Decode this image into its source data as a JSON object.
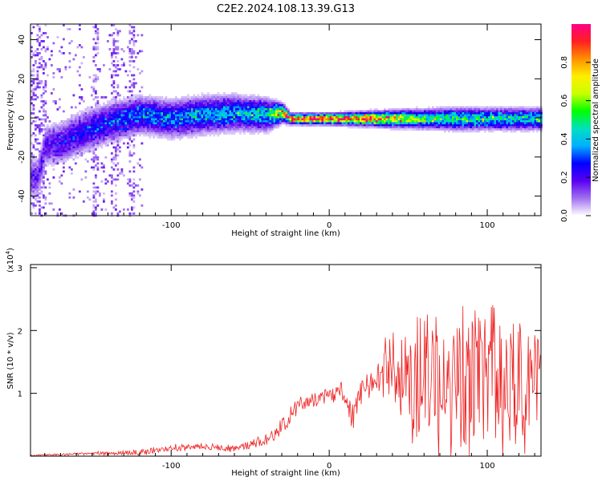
{
  "title": "C2E2.2024.108.13.39.G13",
  "colors": {
    "background": "#ffffff",
    "axis": "#000000",
    "snr_line": "#ee2222"
  },
  "chart_data": [
    {
      "type": "heatmap",
      "title": "C2E2.2024.108.13.39.G13",
      "xlabel": "Height of straight line (km)",
      "ylabel": "Frequency (Hz)",
      "xlim": [
        -189,
        134
      ],
      "ylim": [
        -50,
        48
      ],
      "xticks": [
        -100,
        0,
        100
      ],
      "xtick_labels": [
        "-100",
        "0",
        "100"
      ],
      "yticks": [
        -40,
        -20,
        0,
        20,
        40
      ],
      "ytick_labels": [
        "-40",
        "-20",
        "0",
        "20",
        "40"
      ],
      "colorbar": {
        "label": "Normalized spectral amplitude",
        "range": [
          0,
          1
        ],
        "ticks": [
          0.0,
          0.2,
          0.4,
          0.6,
          0.8
        ],
        "tick_labels": [
          "0.0",
          "0.2",
          "0.4",
          "0.6",
          "0.8"
        ],
        "colormap": [
          "#ffffff",
          "#a070f0",
          "#5a00f0",
          "#0000ff",
          "#00b0ff",
          "#00e0c0",
          "#00ff00",
          "#c8ff00",
          "#ffee00",
          "#ff9000",
          "#ff2020",
          "#ff0088"
        ]
      },
      "band_center_hz": [
        {
          "x": -185,
          "f": -30
        },
        {
          "x": -180,
          "f": -14
        },
        {
          "x": -170,
          "f": -12
        },
        {
          "x": -160,
          "f": -8
        },
        {
          "x": -150,
          "f": -5
        },
        {
          "x": -140,
          "f": -2
        },
        {
          "x": -130,
          "f": 0
        },
        {
          "x": -120,
          "f": 2
        },
        {
          "x": -100,
          "f": 0
        },
        {
          "x": -80,
          "f": 2
        },
        {
          "x": -60,
          "f": 3
        },
        {
          "x": -40,
          "f": 2
        },
        {
          "x": -30,
          "f": 3
        },
        {
          "x": -25,
          "f": 0
        },
        {
          "x": 0,
          "f": 0
        },
        {
          "x": 60,
          "f": 0
        },
        {
          "x": 100,
          "f": 0
        },
        {
          "x": 134,
          "f": 0
        }
      ],
      "band_halfwidth_hz": [
        {
          "x": -185,
          "w": 8
        },
        {
          "x": -160,
          "w": 8
        },
        {
          "x": -120,
          "w": 7
        },
        {
          "x": -80,
          "w": 7
        },
        {
          "x": -40,
          "w": 6
        },
        {
          "x": -25,
          "w": 2
        },
        {
          "x": 0,
          "w": 2
        },
        {
          "x": 40,
          "w": 3
        },
        {
          "x": 80,
          "w": 4
        },
        {
          "x": 134,
          "w": 4
        }
      ],
      "band_peak_amplitude": [
        {
          "x": -185,
          "a": 0.15
        },
        {
          "x": -160,
          "a": 0.22
        },
        {
          "x": -120,
          "a": 0.3
        },
        {
          "x": -80,
          "a": 0.33
        },
        {
          "x": -40,
          "a": 0.38
        },
        {
          "x": -25,
          "a": 0.85
        },
        {
          "x": 0,
          "a": 0.85
        },
        {
          "x": 30,
          "a": 0.8
        },
        {
          "x": 60,
          "a": 0.5
        },
        {
          "x": 100,
          "a": 0.42
        },
        {
          "x": 134,
          "a": 0.4
        }
      ]
    },
    {
      "type": "line",
      "xlabel": "Height of straight line (km)",
      "ylabel": "SNR (10 * v/v)",
      "y_multiplier_label": "(x10",
      "y_multiplier_exp": "4",
      "y_multiplier_close": ")",
      "xlim": [
        -189,
        134
      ],
      "ylim": [
        0,
        3.05
      ],
      "xticks": [
        -100,
        0,
        100
      ],
      "xtick_labels": [
        "-100",
        "0",
        "100"
      ],
      "yticks": [
        1,
        2,
        3
      ],
      "ytick_labels": [
        "1",
        "2",
        "3"
      ],
      "series": [
        {
          "name": "SNR",
          "color": "#ee2222",
          "envelope_mean": [
            {
              "x": -189,
              "y": 0.01
            },
            {
              "x": -150,
              "y": 0.04
            },
            {
              "x": -120,
              "y": 0.06
            },
            {
              "x": -100,
              "y": 0.13
            },
            {
              "x": -80,
              "y": 0.15
            },
            {
              "x": -60,
              "y": 0.12
            },
            {
              "x": -40,
              "y": 0.25
            },
            {
              "x": -30,
              "y": 0.45
            },
            {
              "x": -20,
              "y": 0.8
            },
            {
              "x": -10,
              "y": 0.9
            },
            {
              "x": 0,
              "y": 0.95
            },
            {
              "x": 8,
              "y": 1.05
            },
            {
              "x": 12,
              "y": 0.75
            },
            {
              "x": 15,
              "y": 0.55
            },
            {
              "x": 18,
              "y": 0.95
            },
            {
              "x": 25,
              "y": 1.15
            },
            {
              "x": 30,
              "y": 1.25
            },
            {
              "x": 40,
              "y": 1.4
            },
            {
              "x": 50,
              "y": 1.2
            },
            {
              "x": 70,
              "y": 1.15
            },
            {
              "x": 90,
              "y": 1.2
            },
            {
              "x": 110,
              "y": 1.1
            },
            {
              "x": 134,
              "y": 1.1
            }
          ],
          "envelope_spread": [
            {
              "x": -189,
              "y": 0.01
            },
            {
              "x": -100,
              "y": 0.06
            },
            {
              "x": -60,
              "y": 0.06
            },
            {
              "x": -30,
              "y": 0.15
            },
            {
              "x": 0,
              "y": 0.12
            },
            {
              "x": 15,
              "y": 0.25
            },
            {
              "x": 30,
              "y": 0.2
            },
            {
              "x": 40,
              "y": 0.8
            },
            {
              "x": 60,
              "y": 1.1
            },
            {
              "x": 90,
              "y": 1.4
            },
            {
              "x": 134,
              "y": 1.2
            }
          ]
        }
      ]
    }
  ]
}
